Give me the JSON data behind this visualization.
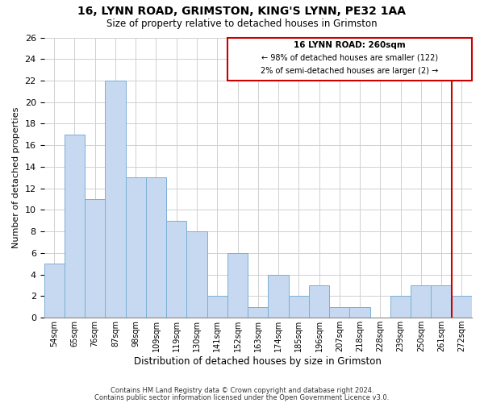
{
  "title": "16, LYNN ROAD, GRIMSTON, KING'S LYNN, PE32 1AA",
  "subtitle": "Size of property relative to detached houses in Grimston",
  "xlabel": "Distribution of detached houses by size in Grimston",
  "ylabel": "Number of detached properties",
  "bar_labels": [
    "54sqm",
    "65sqm",
    "76sqm",
    "87sqm",
    "98sqm",
    "109sqm",
    "119sqm",
    "130sqm",
    "141sqm",
    "152sqm",
    "163sqm",
    "174sqm",
    "185sqm",
    "196sqm",
    "207sqm",
    "218sqm",
    "228sqm",
    "239sqm",
    "250sqm",
    "261sqm",
    "272sqm"
  ],
  "bar_heights": [
    5,
    17,
    11,
    22,
    13,
    13,
    9,
    8,
    2,
    6,
    1,
    4,
    2,
    3,
    1,
    1,
    0,
    2,
    3,
    3,
    2
  ],
  "bar_color": "#c6d9f0",
  "bar_edge_color": "#7bafd4",
  "ylim": [
    0,
    26
  ],
  "yticks": [
    0,
    2,
    4,
    6,
    8,
    10,
    12,
    14,
    16,
    18,
    20,
    22,
    24,
    26
  ],
  "vline_color": "#cc0000",
  "annotation_title": "16 LYNN ROAD: 260sqm",
  "annotation_line1": "← 98% of detached houses are smaller (122)",
  "annotation_line2": "2% of semi-detached houses are larger (2) →",
  "annotation_box_color": "#cc0000",
  "footer1": "Contains HM Land Registry data © Crown copyright and database right 2024.",
  "footer2": "Contains public sector information licensed under the Open Government Licence v3.0.",
  "background_color": "#ffffff",
  "grid_color": "#d0d0d0"
}
